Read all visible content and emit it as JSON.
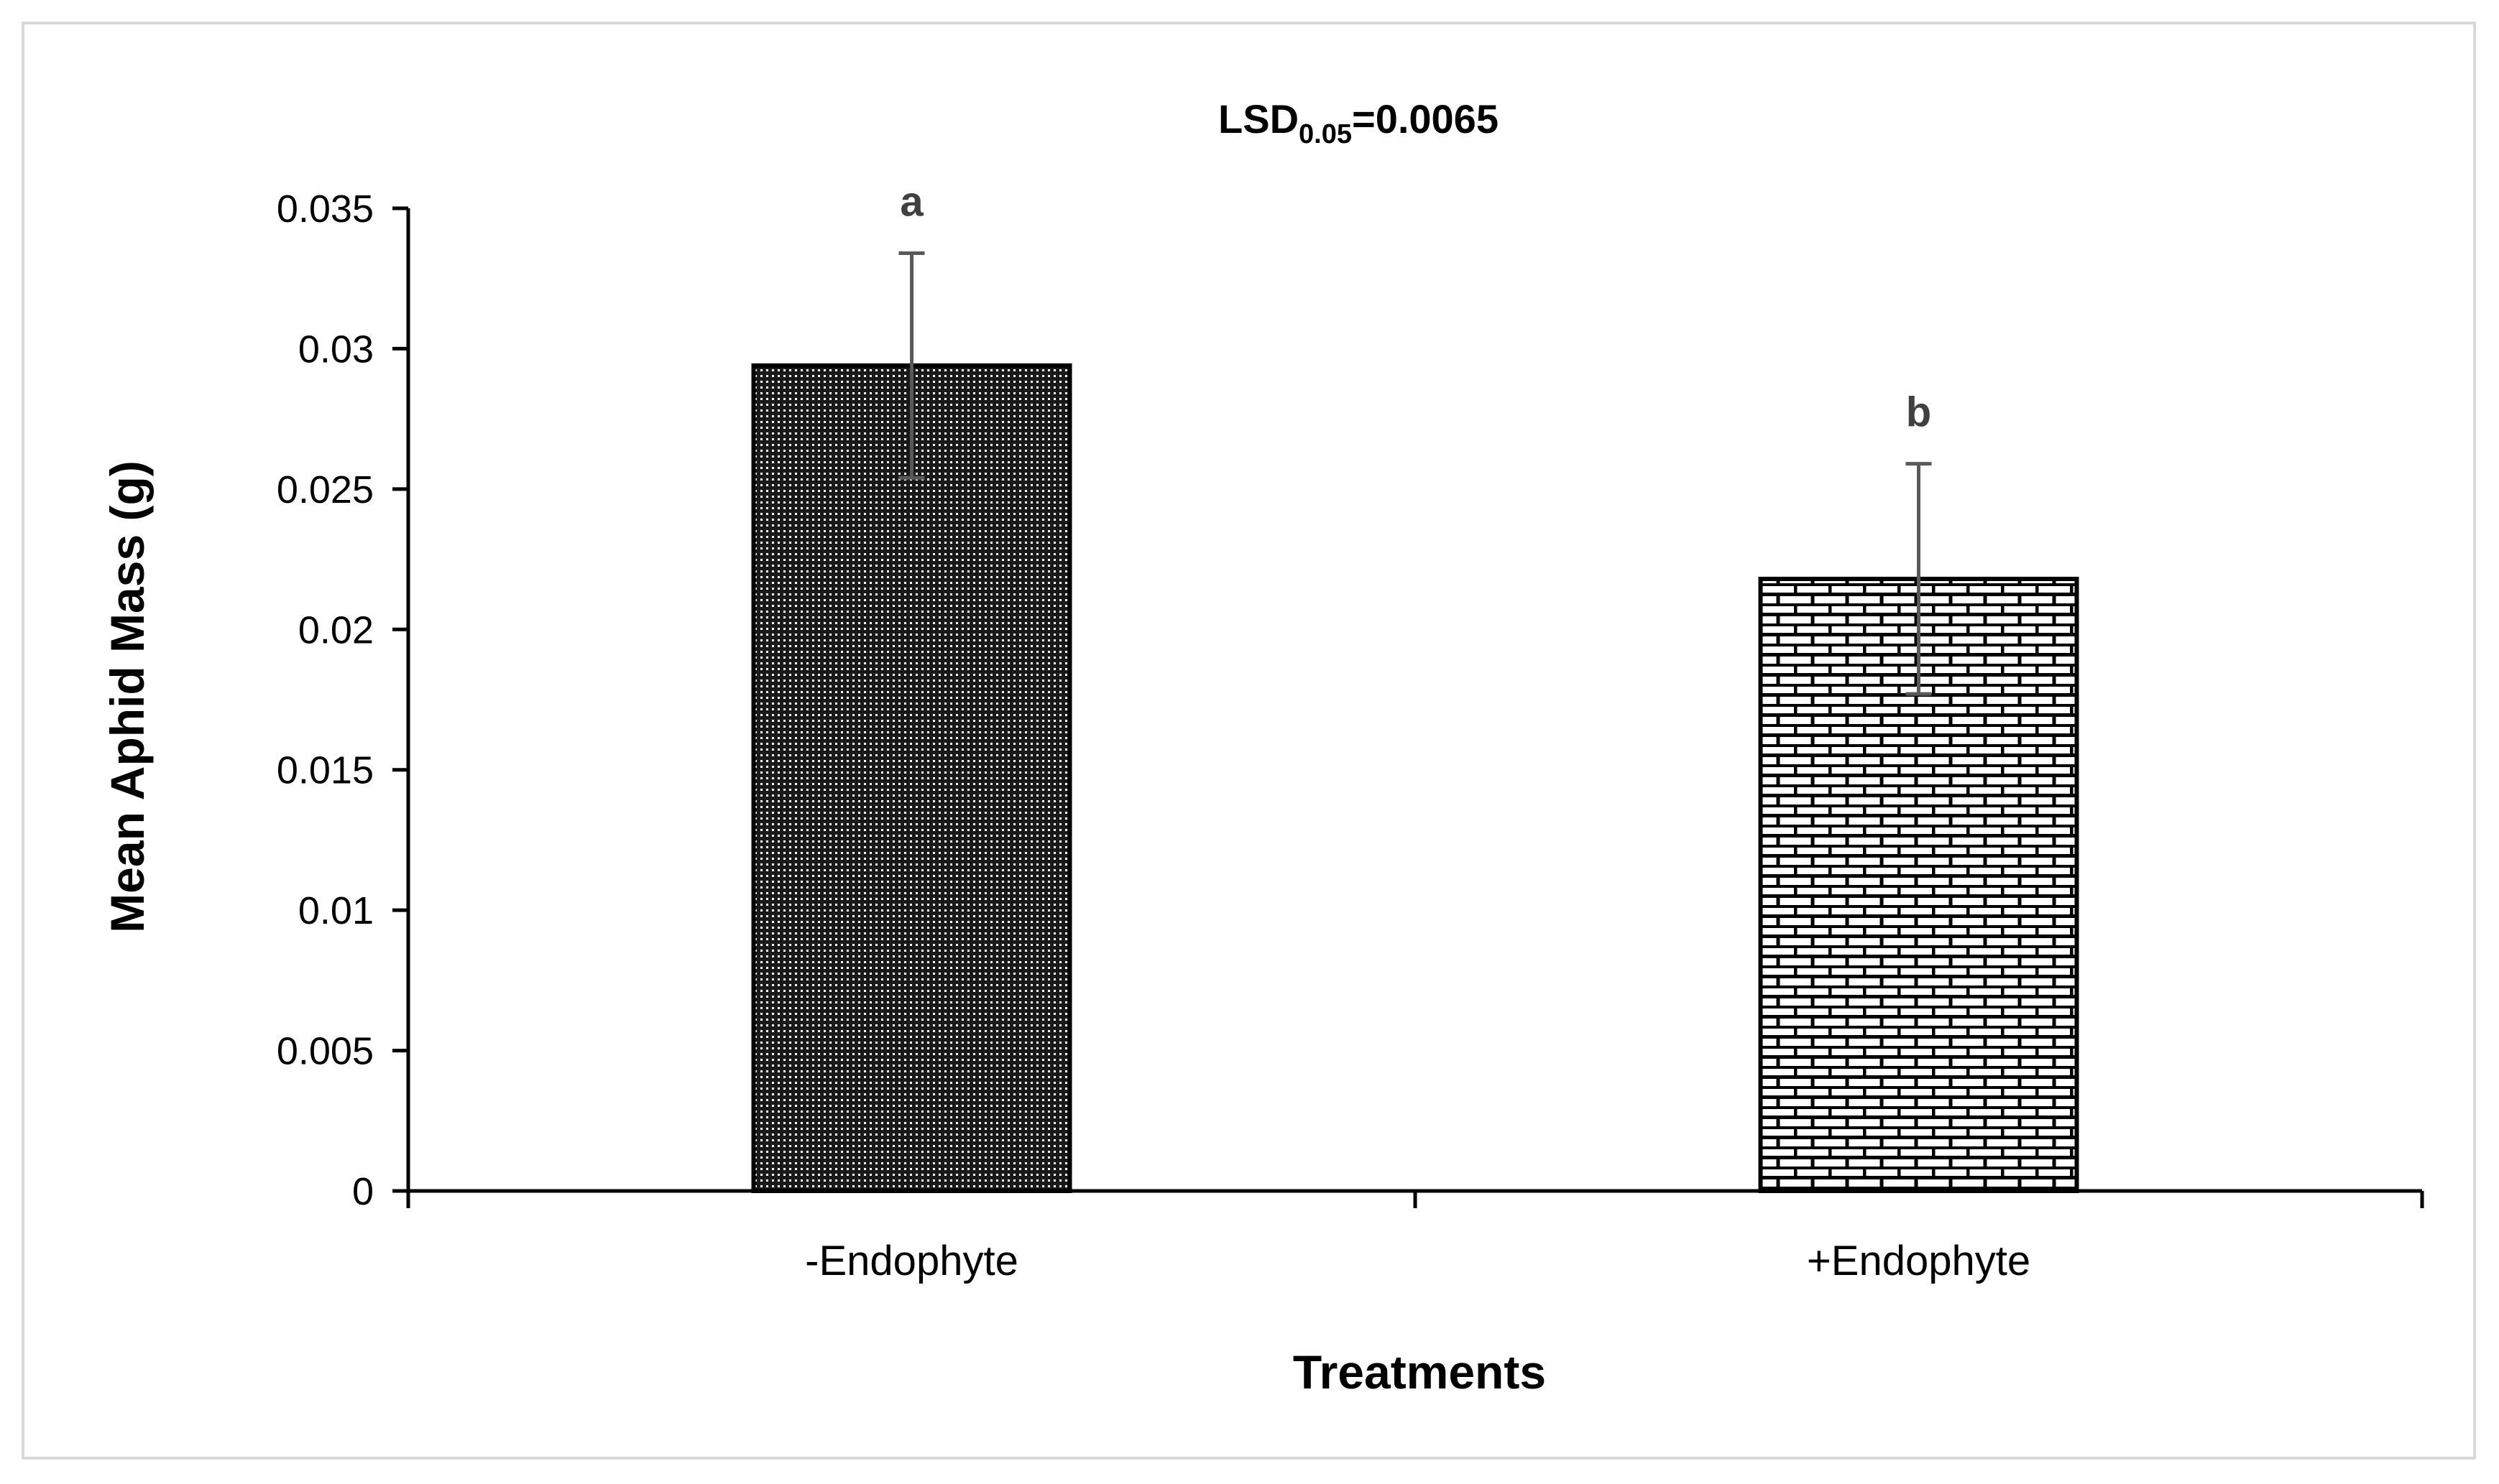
{
  "chart_data": {
    "type": "bar",
    "title_main": "LSD",
    "title_sub": "0.05",
    "title_value": "=0.0065",
    "xlabel": "Treatments",
    "ylabel": "Mean Aphid Mass (g)",
    "ylim": [
      0,
      0.035
    ],
    "yticks": [
      "0",
      "0.005",
      "0.01",
      "0.015",
      "0.02",
      "0.025",
      "0.03",
      "0.035"
    ],
    "ytick_values": [
      0,
      0.005,
      0.01,
      0.015,
      0.02,
      0.025,
      0.03,
      0.035
    ],
    "categories": [
      "-Endophyte",
      "+Endophyte"
    ],
    "values": [
      0.0294,
      0.0218
    ],
    "errors": [
      0.004,
      0.0041
    ],
    "significance_letters": [
      "a",
      "b"
    ],
    "fill_patterns": [
      "dotted-dark",
      "brick"
    ],
    "grid": false,
    "legend": "none"
  }
}
